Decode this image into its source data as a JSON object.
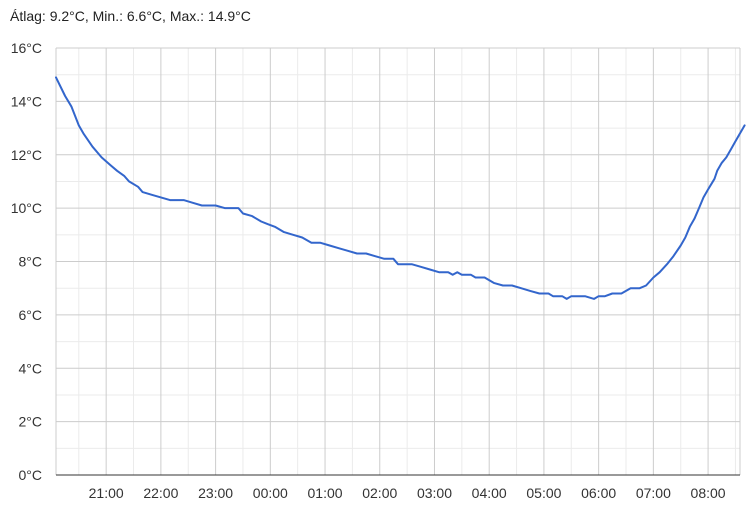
{
  "summary_text": "Átlag: 9.2°C, Min.: 6.6°C, Max.: 14.9°C",
  "colors": {
    "line": "#3366cc",
    "grid_major": "#cccccc",
    "grid_minor": "#ebebeb",
    "axis": "#333333",
    "text": "#333333"
  },
  "chart_data": {
    "type": "line",
    "title": "",
    "xlabel": "",
    "ylabel": "",
    "grid": true,
    "ylim": [
      0,
      16
    ],
    "xlim": [
      "20:05",
      "08:35"
    ],
    "y_ticks": [
      "0°C",
      "2°C",
      "4°C",
      "6°C",
      "8°C",
      "10°C",
      "12°C",
      "14°C",
      "16°C"
    ],
    "y_tick_values": [
      0,
      2,
      4,
      6,
      8,
      10,
      12,
      14,
      16
    ],
    "x_ticks": [
      "21:00",
      "22:00",
      "23:00",
      "00:00",
      "01:00",
      "02:00",
      "03:00",
      "04:00",
      "05:00",
      "06:00",
      "07:00",
      "08:00"
    ],
    "series": [
      {
        "values": [
          [
            "20:05",
            14.9
          ],
          [
            "20:15",
            14.2
          ],
          [
            "20:22",
            13.8
          ],
          [
            "20:30",
            13.1
          ],
          [
            "20:35",
            12.8
          ],
          [
            "20:45",
            12.3
          ],
          [
            "20:55",
            11.9
          ],
          [
            "21:05",
            11.6
          ],
          [
            "21:12",
            11.4
          ],
          [
            "21:20",
            11.2
          ],
          [
            "21:25",
            11.0
          ],
          [
            "21:35",
            10.8
          ],
          [
            "21:40",
            10.6
          ],
          [
            "21:50",
            10.5
          ],
          [
            "22:00",
            10.4
          ],
          [
            "22:10",
            10.3
          ],
          [
            "22:25",
            10.3
          ],
          [
            "22:35",
            10.2
          ],
          [
            "22:45",
            10.1
          ],
          [
            "23:00",
            10.1
          ],
          [
            "23:10",
            10.0
          ],
          [
            "23:25",
            10.0
          ],
          [
            "23:30",
            9.8
          ],
          [
            "23:40",
            9.7
          ],
          [
            "23:50",
            9.5
          ],
          [
            "23:57",
            9.4
          ],
          [
            "00:05",
            9.3
          ],
          [
            "00:15",
            9.1
          ],
          [
            "00:25",
            9.0
          ],
          [
            "00:35",
            8.9
          ],
          [
            "00:45",
            8.7
          ],
          [
            "00:55",
            8.7
          ],
          [
            "01:05",
            8.6
          ],
          [
            "01:15",
            8.5
          ],
          [
            "01:25",
            8.4
          ],
          [
            "01:35",
            8.3
          ],
          [
            "01:45",
            8.3
          ],
          [
            "01:55",
            8.2
          ],
          [
            "02:05",
            8.1
          ],
          [
            "02:15",
            8.1
          ],
          [
            "02:20",
            7.9
          ],
          [
            "02:35",
            7.9
          ],
          [
            "02:45",
            7.8
          ],
          [
            "02:55",
            7.7
          ],
          [
            "03:05",
            7.6
          ],
          [
            "03:15",
            7.6
          ],
          [
            "03:20",
            7.5
          ],
          [
            "03:25",
            7.6
          ],
          [
            "03:30",
            7.5
          ],
          [
            "03:40",
            7.5
          ],
          [
            "03:45",
            7.4
          ],
          [
            "03:55",
            7.4
          ],
          [
            "04:05",
            7.2
          ],
          [
            "04:15",
            7.1
          ],
          [
            "04:25",
            7.1
          ],
          [
            "04:35",
            7.0
          ],
          [
            "04:45",
            6.9
          ],
          [
            "04:55",
            6.8
          ],
          [
            "05:05",
            6.8
          ],
          [
            "05:10",
            6.7
          ],
          [
            "05:20",
            6.7
          ],
          [
            "05:25",
            6.6
          ],
          [
            "05:30",
            6.7
          ],
          [
            "05:45",
            6.7
          ],
          [
            "05:55",
            6.6
          ],
          [
            "06:00",
            6.7
          ],
          [
            "06:07",
            6.7
          ],
          [
            "06:15",
            6.8
          ],
          [
            "06:25",
            6.8
          ],
          [
            "06:35",
            7.0
          ],
          [
            "06:45",
            7.0
          ],
          [
            "06:52",
            7.1
          ],
          [
            "07:00",
            7.4
          ],
          [
            "07:07",
            7.6
          ],
          [
            "07:15",
            7.9
          ],
          [
            "07:22",
            8.2
          ],
          [
            "07:30",
            8.6
          ],
          [
            "07:35",
            8.9
          ],
          [
            "07:40",
            9.3
          ],
          [
            "07:45",
            9.6
          ],
          [
            "07:50",
            10.0
          ],
          [
            "07:55",
            10.4
          ],
          [
            "08:00",
            10.7
          ],
          [
            "08:07",
            11.1
          ],
          [
            "08:10",
            11.4
          ],
          [
            "08:15",
            11.7
          ],
          [
            "08:20",
            11.9
          ],
          [
            "08:25",
            12.2
          ],
          [
            "08:30",
            12.5
          ],
          [
            "08:35",
            12.8
          ],
          [
            "08:40",
            13.1
          ]
        ]
      }
    ]
  }
}
